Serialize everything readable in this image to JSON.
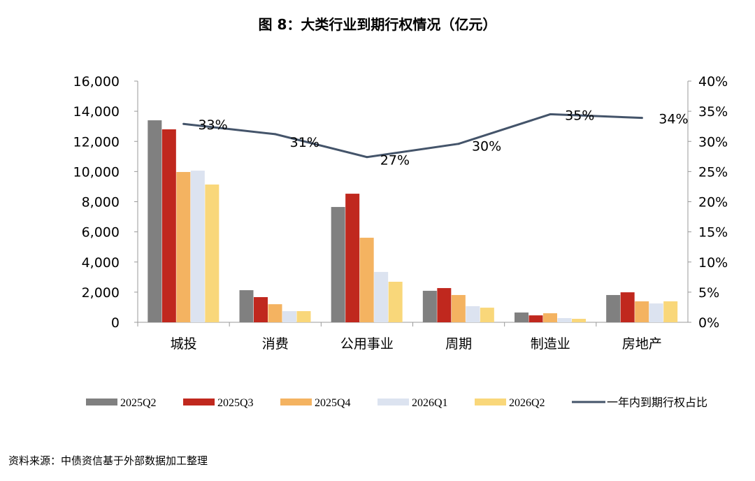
{
  "chart_data": {
    "type": "bar",
    "title": "图 8：大类行业到期行权情况（亿元）",
    "categories": [
      "城投",
      "消费",
      "公用事业",
      "周期",
      "制造业",
      "房地产"
    ],
    "ylim": [
      0,
      16000
    ],
    "y_ticks": [
      "0",
      "2,000",
      "4,000",
      "6,000",
      "8,000",
      "10,000",
      "12,000",
      "14,000",
      "16,000"
    ],
    "y2lim": [
      0,
      40
    ],
    "y2_ticks": [
      "0%",
      "5%",
      "10%",
      "15%",
      "20%",
      "25%",
      "30%",
      "35%",
      "40%"
    ],
    "grid": false,
    "legend_position": "bottom",
    "series": [
      {
        "name": "2025Q2",
        "color": "#808080",
        "values": [
          13400,
          2130,
          7650,
          2090,
          650,
          1810
        ]
      },
      {
        "name": "2025Q3",
        "color": "#C0281E",
        "values": [
          12800,
          1670,
          8530,
          2270,
          460,
          1990
        ]
      },
      {
        "name": "2025Q4",
        "color": "#F4B361",
        "values": [
          9970,
          1200,
          5610,
          1810,
          600,
          1390
        ]
      },
      {
        "name": "2026Q1",
        "color": "#DCE3F0",
        "values": [
          10060,
          740,
          3340,
          1070,
          280,
          1250
        ]
      },
      {
        "name": "2026Q2",
        "color": "#F9D77A",
        "values": [
          9140,
          740,
          2690,
          970,
          230,
          1390
        ]
      }
    ],
    "line_series": {
      "name": "一年内到期行权占比",
      "color": "#44546A",
      "axis": "right",
      "values": [
        32.9,
        31.2,
        27.4,
        29.6,
        34.5,
        33.9
      ],
      "labels": [
        "33%",
        "31%",
        "27%",
        "30%",
        "35%",
        "34%"
      ]
    }
  },
  "source": "资料来源：中债资信基于外部数据加工整理"
}
